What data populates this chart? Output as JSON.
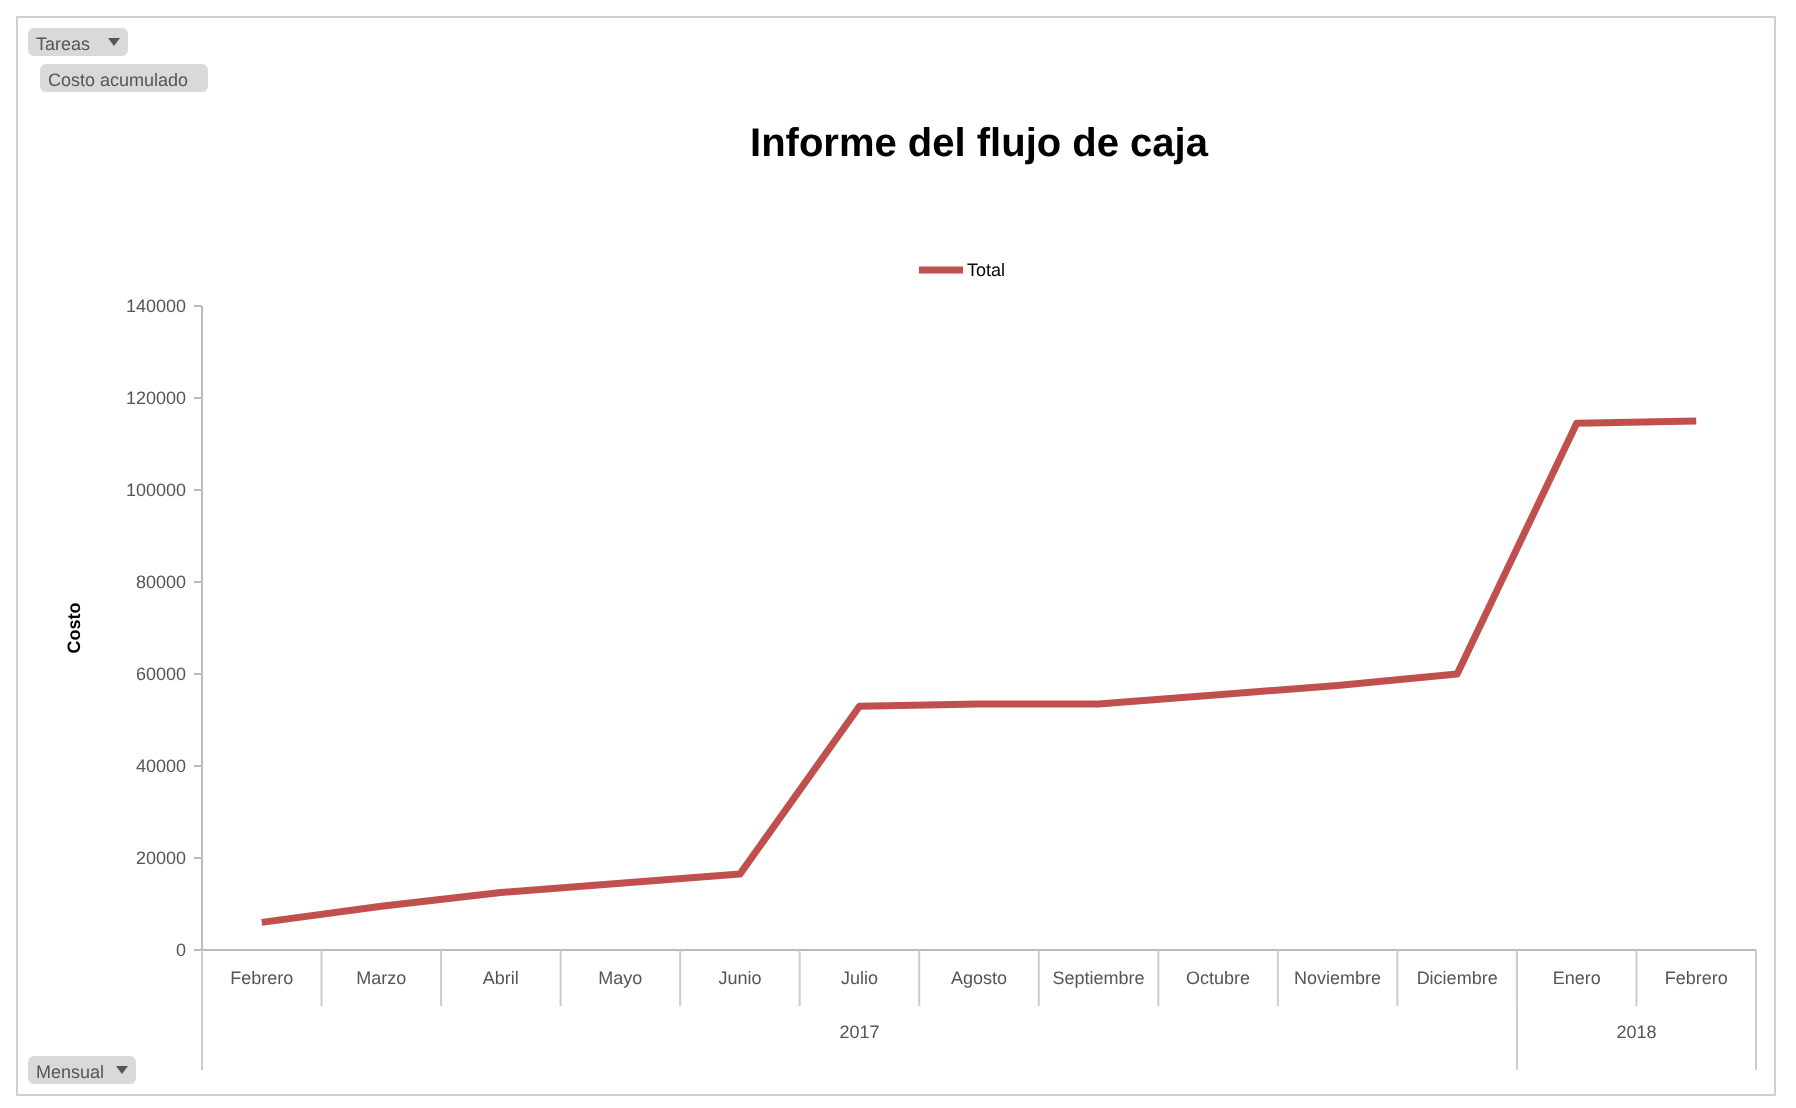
{
  "chart_data": {
    "type": "line",
    "title": "Informe del flujo de caja",
    "ylabel": "Costo",
    "categories": [
      "Febrero",
      "Marzo",
      "Abril",
      "Mayo",
      "Junio",
      "Julio",
      "Agosto",
      "Septiembre",
      "Octubre",
      "Noviembre",
      "Diciembre",
      "Enero",
      "Febrero"
    ],
    "series": [
      {
        "name": "Total",
        "color": "#c0504d",
        "values": [
          6000,
          9500,
          12500,
          14500,
          16500,
          53000,
          53500,
          53500,
          55500,
          57500,
          60000,
          114500,
          115000
        ]
      }
    ],
    "ylim": [
      0,
      140000
    ],
    "yticks": [
      0,
      20000,
      40000,
      60000,
      80000,
      100000,
      120000,
      140000
    ],
    "legend": "top",
    "marker": "none",
    "line_style": "solid",
    "annotations": [
      "Tareas",
      "Costo acumulado",
      "Mensual",
      "2017",
      "2018"
    ]
  }
}
